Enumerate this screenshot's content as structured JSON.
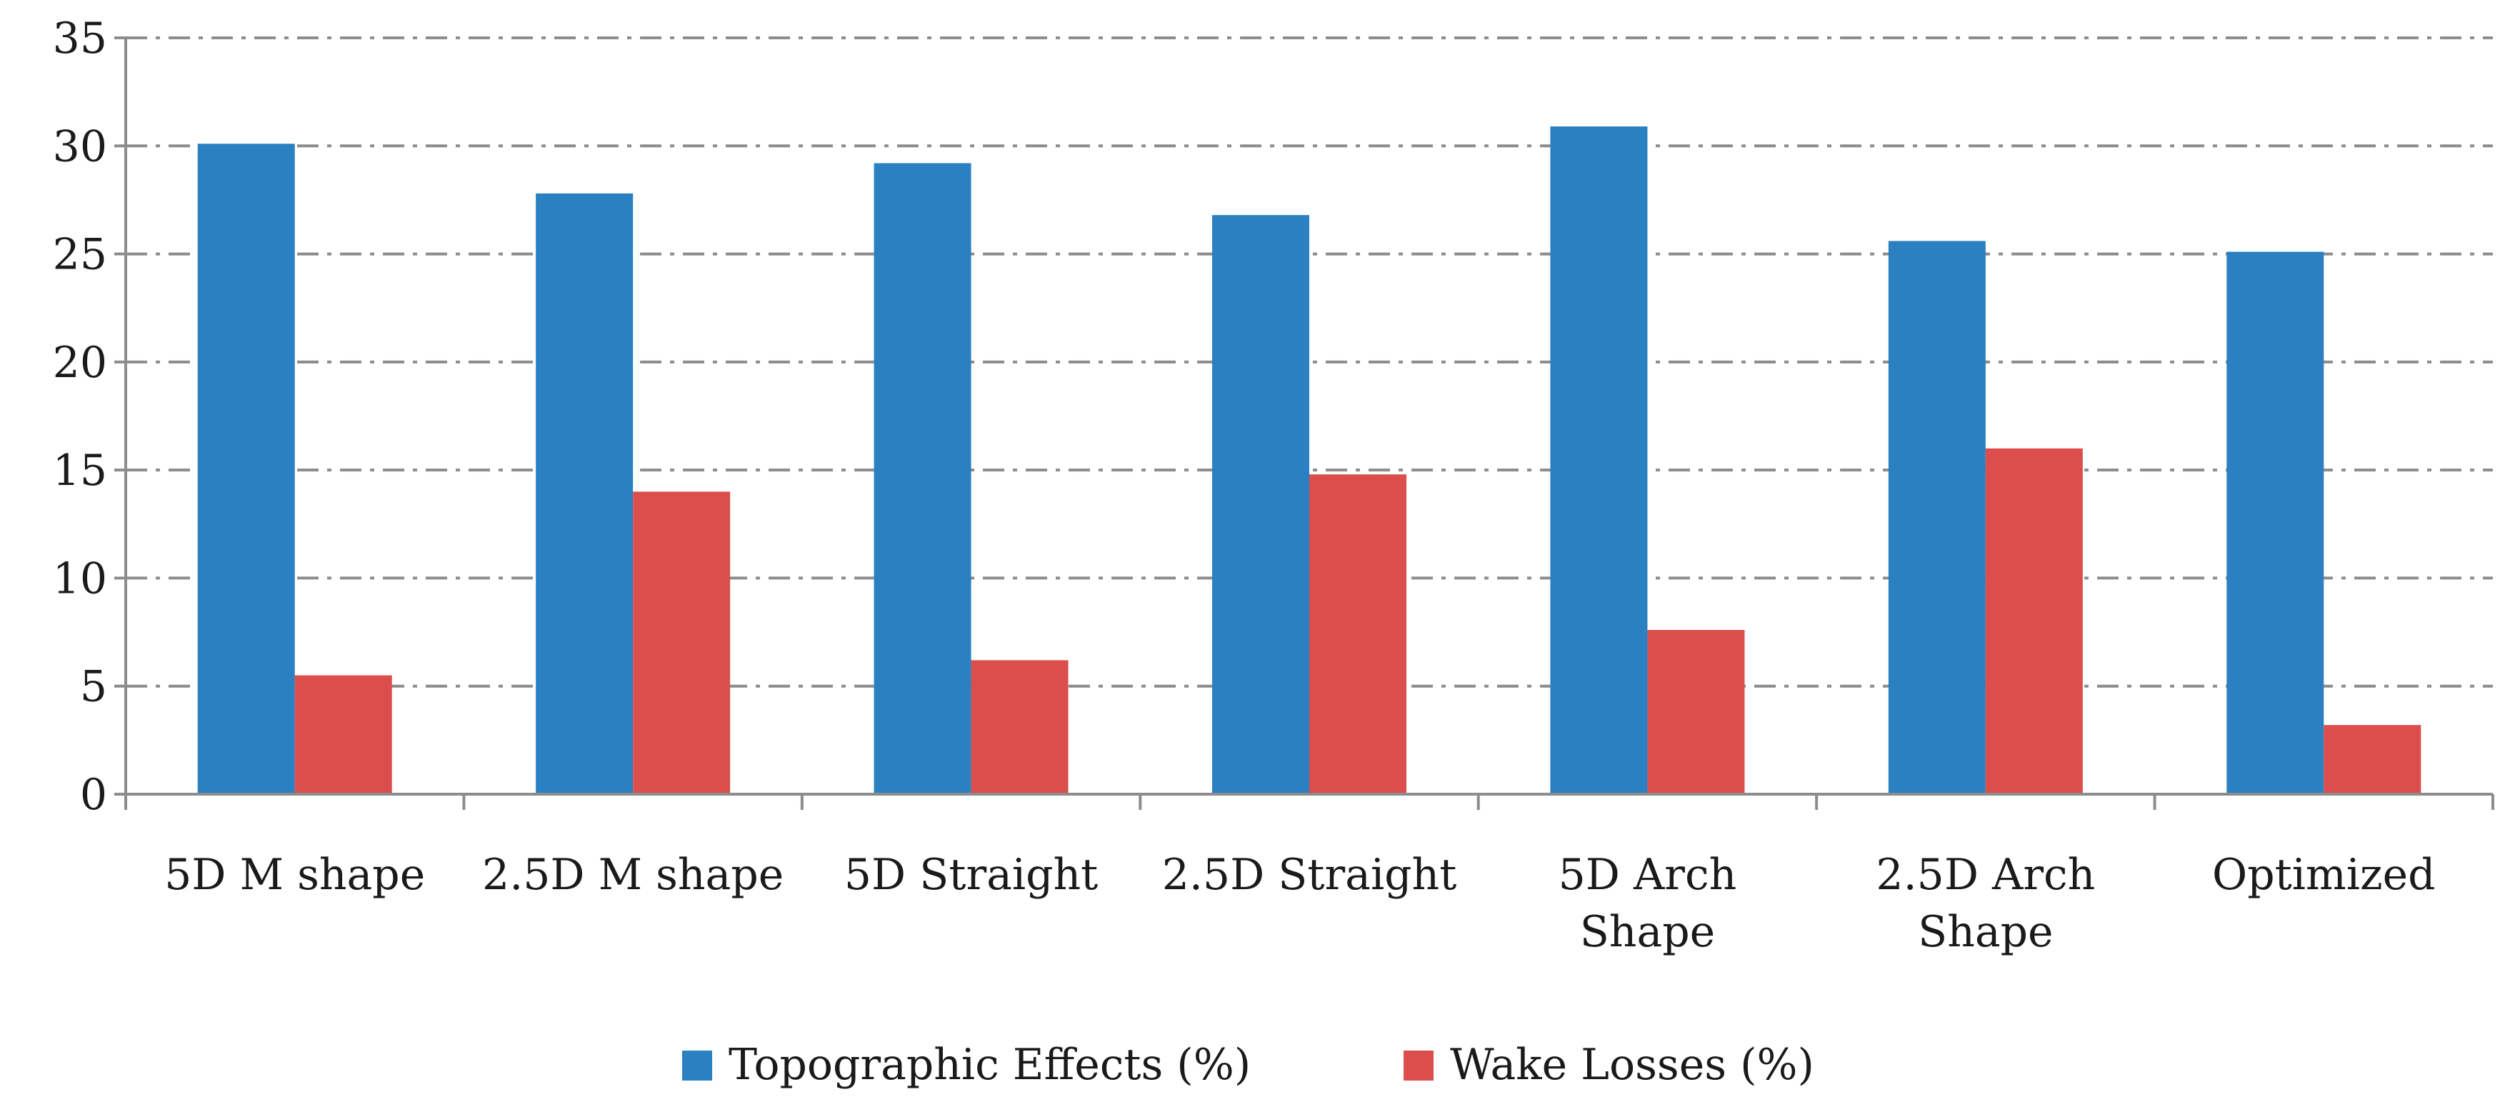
{
  "chart_data": {
    "type": "bar",
    "title": "",
    "xlabel": "",
    "ylabel": "",
    "ylim": [
      0,
      35
    ],
    "yticks": [
      0,
      5,
      10,
      15,
      20,
      25,
      30,
      35
    ],
    "grid": true,
    "legend_position": "bottom",
    "categories": [
      [
        "5D M shape"
      ],
      [
        "2.5D M shape"
      ],
      [
        "5D Straight"
      ],
      [
        "2.5D Straight"
      ],
      [
        "5D Arch",
        "Shape"
      ],
      [
        "2.5D Arch",
        "Shape"
      ],
      [
        "Optimized"
      ]
    ],
    "series": [
      {
        "name": "Topographic Effects (%)",
        "color": "#2a80c1",
        "values": [
          30.1,
          27.8,
          29.2,
          26.8,
          30.9,
          25.6,
          25.1
        ]
      },
      {
        "name": "Wake Losses (%)",
        "color": "#dc4e4c",
        "values": [
          5.5,
          14.0,
          6.2,
          14.8,
          7.6,
          16.0,
          3.2
        ]
      }
    ]
  }
}
